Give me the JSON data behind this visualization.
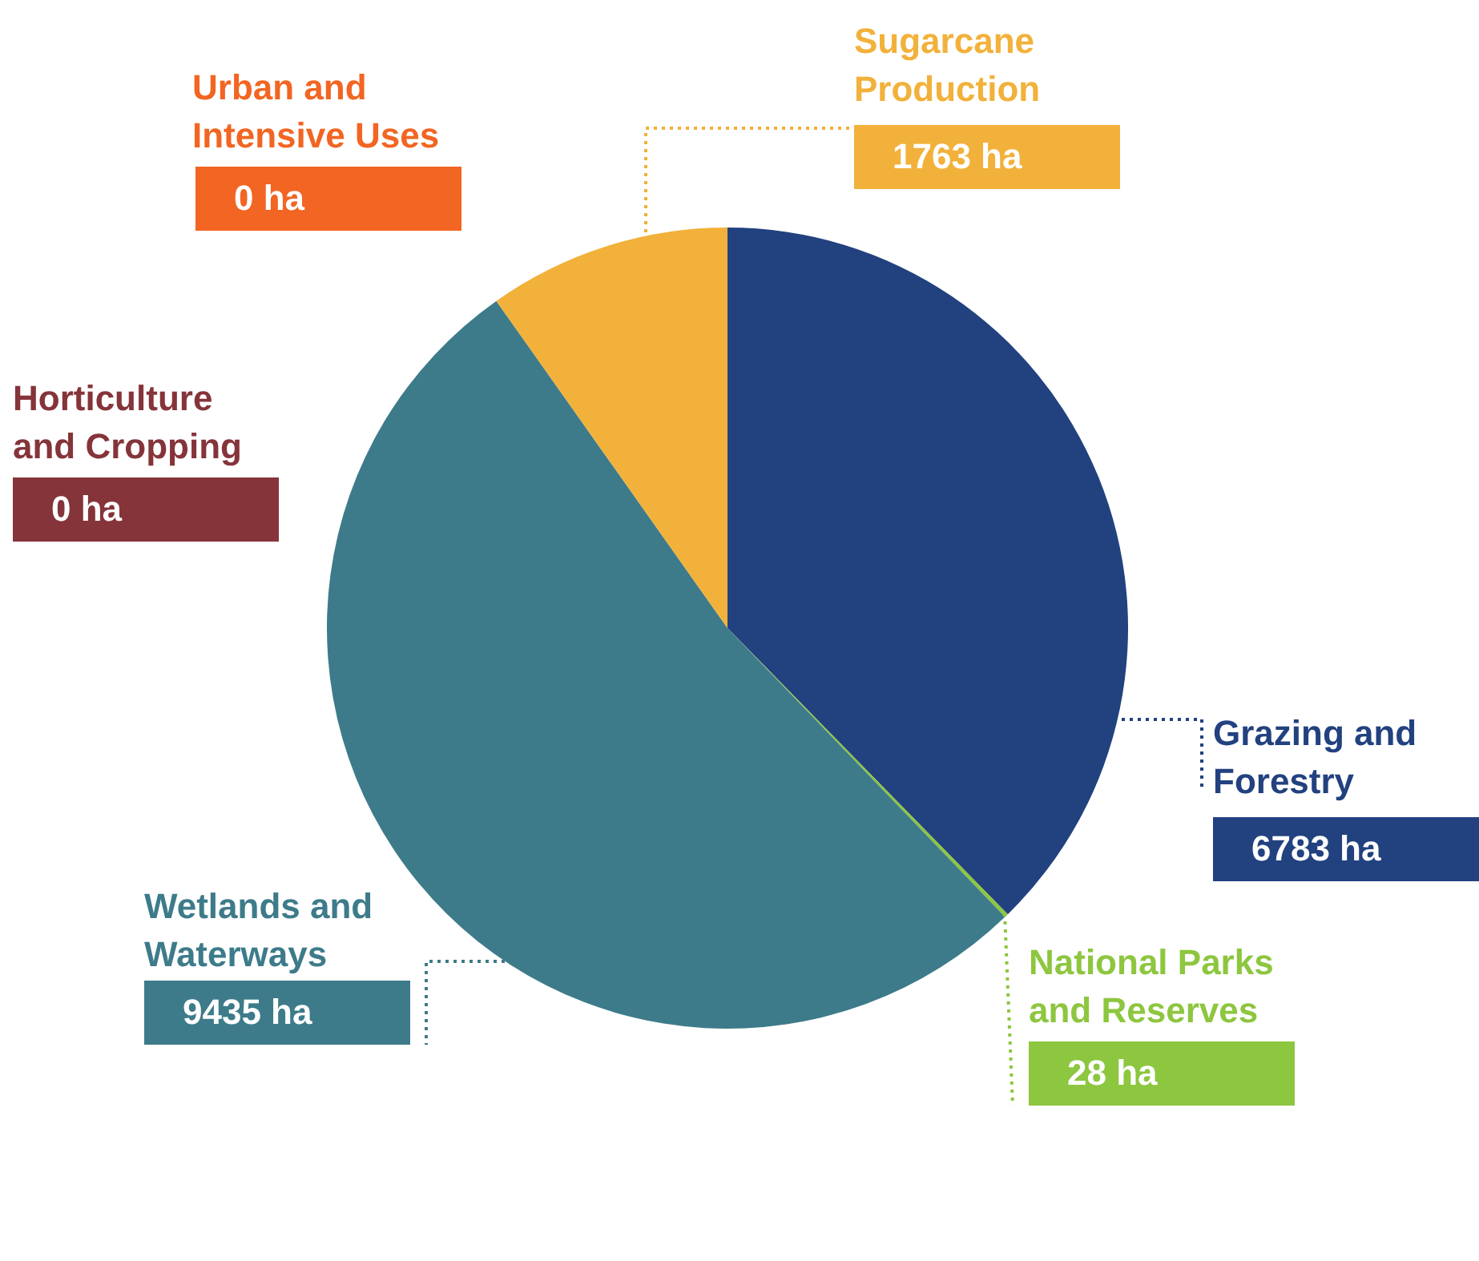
{
  "chart_data": {
    "type": "pie",
    "categories": [
      "Grazing and Forestry",
      "National Parks and Reserves",
      "Wetlands and Waterways",
      "Horticulture and Cropping",
      "Urban and Intensive Uses",
      "Sugarcane Production"
    ],
    "values": [
      6783,
      28,
      9435,
      0,
      0,
      1763
    ],
    "colors": [
      "#22417f",
      "#8dc63f",
      "#3d7b8a",
      "#85343a",
      "#f26522",
      "#f2b13a"
    ],
    "value_labels": [
      "6783 ha",
      "28 ha",
      "9435 ha",
      "0 ha",
      "0 ha",
      "1763 ha"
    ],
    "legend": false
  }
}
